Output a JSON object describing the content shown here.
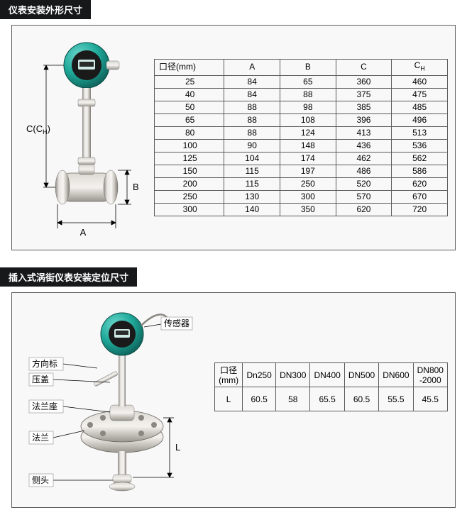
{
  "colors": {
    "header_bg": "#17181a",
    "header_text": "#ffffff",
    "panel_bg": "#f8f8f8",
    "panel_border": "#5b5b5d",
    "table_border": "#5b5b5d",
    "device_teal": "#1fa99a",
    "device_teal_dark": "#0e6d63",
    "metal_light": "#e6e4e0",
    "metal_mid": "#b6b2ab",
    "metal_dark": "#7d7974",
    "lcd_dark": "#2a2a2a",
    "label_box_fill": "#fefefe",
    "label_box_stroke": "#9c9c9c"
  },
  "section1": {
    "title": "仪表安装外形尺寸",
    "dim_labels": {
      "A": "A",
      "B": "B",
      "C": "C(C",
      "Csub": "H",
      "Cclose": ")"
    },
    "table": {
      "columns": [
        "口径(mm)",
        "A",
        "B",
        "C",
        "CH"
      ],
      "rows": [
        [
          "25",
          "84",
          "65",
          "360",
          "460"
        ],
        [
          "40",
          "84",
          "88",
          "375",
          "475"
        ],
        [
          "50",
          "88",
          "98",
          "385",
          "485"
        ],
        [
          "65",
          "88",
          "108",
          "396",
          "496"
        ],
        [
          "80",
          "88",
          "124",
          "413",
          "513"
        ],
        [
          "100",
          "90",
          "148",
          "436",
          "536"
        ],
        [
          "125",
          "104",
          "174",
          "462",
          "562"
        ],
        [
          "150",
          "115",
          "197",
          "486",
          "586"
        ],
        [
          "200",
          "115",
          "250",
          "520",
          "620"
        ],
        [
          "250",
          "130",
          "300",
          "570",
          "670"
        ],
        [
          "300",
          "140",
          "350",
          "620",
          "720"
        ]
      ]
    }
  },
  "section2": {
    "title": "插入式涡街仪表安装定位尺寸",
    "labels": {
      "sensor": "传感器",
      "direction": "方向标",
      "cover": "压盖",
      "flange_seat": "法兰座",
      "flange": "法兰",
      "probe": "侧头",
      "L": "L"
    },
    "table": {
      "columns": [
        "口径\n(mm)",
        "Dn250",
        "DN300",
        "DN400",
        "DN500",
        "DN600",
        "DN800\n-2000"
      ],
      "rows": [
        [
          "L",
          "60.5",
          "58",
          "65.5",
          "60.5",
          "55.5",
          "45.5"
        ]
      ]
    }
  }
}
